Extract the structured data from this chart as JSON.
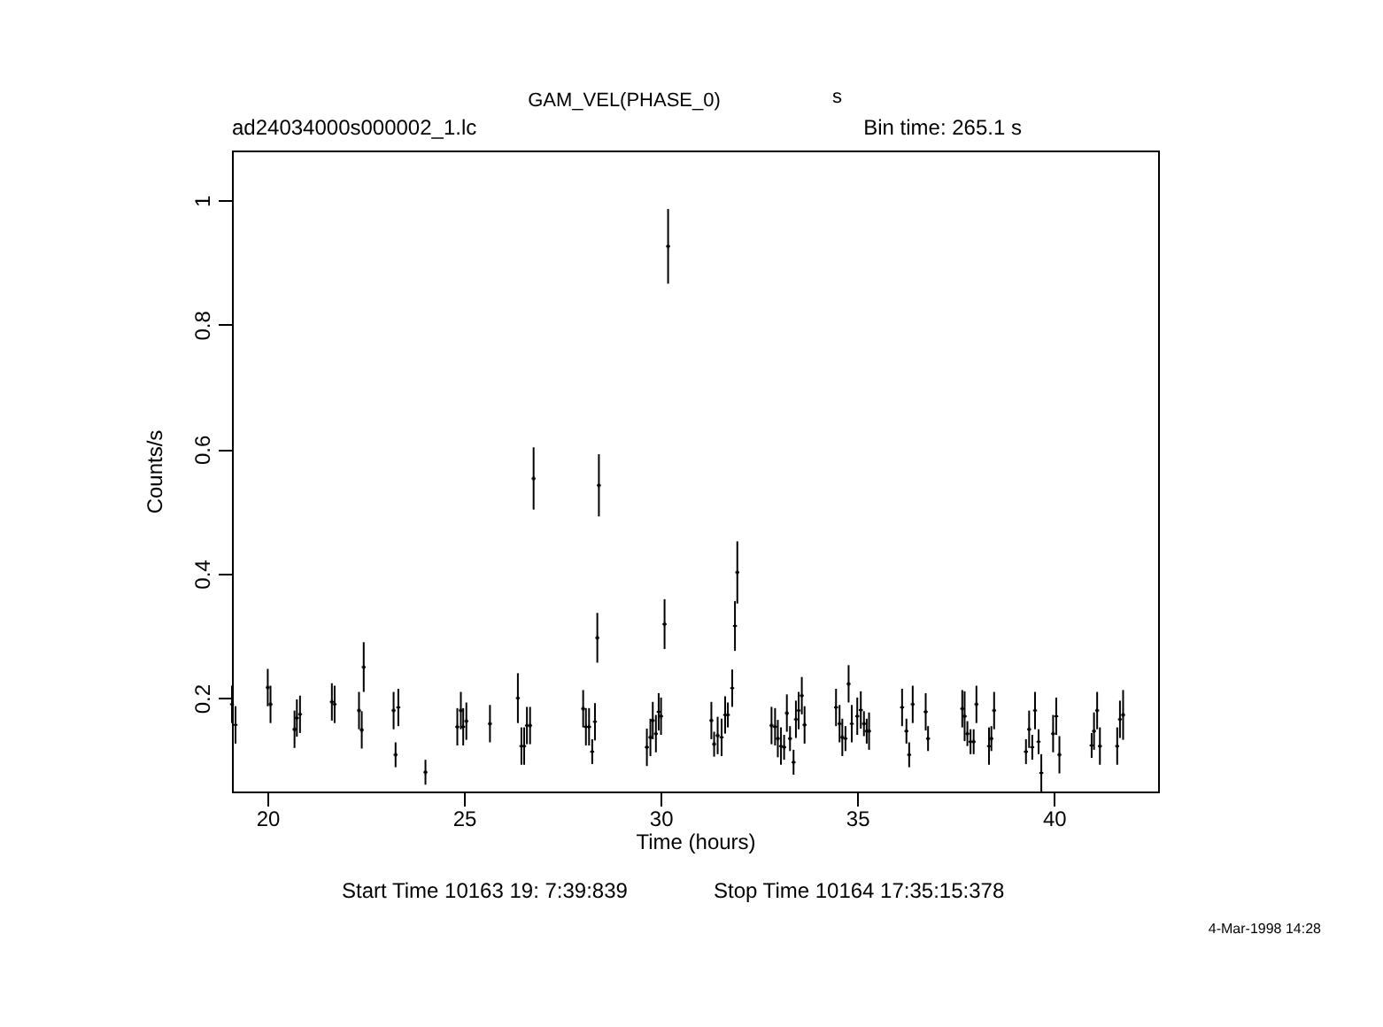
{
  "chart_data": {
    "type": "scatter",
    "title": "GAM_VEL(PHASE_0)",
    "xlabel": "Time (hours)",
    "ylabel": "Counts/s",
    "annotations": [
      "s",
      "ad24034000s000002_1.lc",
      "Bin time:   265.1   s",
      "Start Time 10163 19: 7:39:839",
      "Stop Time 10164 17:35:15:378",
      "4-Mar-1998 14:28"
    ],
    "marker": "cross",
    "xlim": [
      19.1,
      42.65
    ],
    "xticks": [
      20,
      25,
      30,
      35,
      40
    ],
    "ylim": [
      0.05,
      1.08
    ],
    "yticks": [
      0.2,
      0.4,
      0.6,
      0.8,
      1
    ],
    "x": [
      19.1,
      19.19,
      20.01,
      20.08,
      20.69,
      20.75,
      20.83,
      21.64,
      21.71,
      22.33,
      22.4,
      22.45,
      23.21,
      23.26,
      23.33,
      24.02,
      24.83,
      24.92,
      24.98,
      25.06,
      25.66,
      26.37,
      26.46,
      26.53,
      26.6,
      26.68,
      26.77,
      28.03,
      28.1,
      28.18,
      28.26,
      28.33,
      28.39,
      28.43,
      29.65,
      29.74,
      29.8,
      29.88,
      29.95,
      30.01,
      30.1,
      30.19,
      31.29,
      31.36,
      31.45,
      31.55,
      31.64,
      31.71,
      31.82,
      31.89,
      31.95,
      32.82,
      32.91,
      32.98,
      33.06,
      33.14,
      33.21,
      33.29,
      33.38,
      33.44,
      33.51,
      33.59,
      33.66,
      34.46,
      34.55,
      34.62,
      34.7,
      34.78,
      34.86,
      35.0,
      35.09,
      35.17,
      35.24,
      35.3,
      36.14,
      36.25,
      36.32,
      36.41,
      36.74,
      36.8,
      37.67,
      37.73,
      37.8,
      37.88,
      37.96,
      38.03,
      38.35,
      38.41,
      38.48,
      39.29,
      39.37,
      39.45,
      39.52,
      39.61,
      39.68,
      39.98,
      40.06,
      40.14,
      40.96,
      41.02,
      41.1,
      41.17,
      41.61,
      41.68,
      41.76
    ],
    "series": [
      {
        "color": "#000000",
        "values": [
          0.19,
          0.157,
          0.217,
          0.19,
          0.15,
          0.168,
          0.174,
          0.194,
          0.19,
          0.18,
          0.149,
          0.25,
          0.18,
          0.109,
          0.185,
          0.081,
          0.154,
          0.18,
          0.154,
          0.163,
          0.159,
          0.2,
          0.123,
          0.123,
          0.156,
          0.156,
          0.553,
          0.183,
          0.154,
          0.154,
          0.114,
          0.162,
          0.297,
          0.542,
          0.121,
          0.137,
          0.164,
          0.143,
          0.178,
          0.171,
          0.319,
          0.926,
          0.164,
          0.126,
          0.14,
          0.137,
          0.173,
          0.173,
          0.216,
          0.316,
          0.402,
          0.156,
          0.154,
          0.135,
          0.123,
          0.121,
          0.176,
          0.135,
          0.097,
          0.166,
          0.18,
          0.204,
          0.157,
          0.185,
          0.159,
          0.137,
          0.135,
          0.223,
          0.159,
          0.171,
          0.181,
          0.159,
          0.147,
          0.147,
          0.185,
          0.147,
          0.109,
          0.19,
          0.178,
          0.135,
          0.183,
          0.171,
          0.143,
          0.13,
          0.13,
          0.19,
          0.123,
          0.135,
          0.18,
          0.114,
          0.15,
          0.121,
          0.18,
          0.13,
          0.08,
          0.143,
          0.171,
          0.109,
          0.124,
          0.147,
          0.18,
          0.123,
          0.123,
          0.166,
          0.173
        ],
        "errors": [
          0.03,
          0.03,
          0.03,
          0.03,
          0.03,
          0.03,
          0.03,
          0.03,
          0.03,
          0.03,
          0.03,
          0.04,
          0.03,
          0.02,
          0.03,
          0.02,
          0.03,
          0.03,
          0.03,
          0.03,
          0.03,
          0.04,
          0.03,
          0.03,
          0.03,
          0.03,
          0.05,
          0.03,
          0.03,
          0.03,
          0.02,
          0.03,
          0.04,
          0.05,
          0.03,
          0.03,
          0.03,
          0.03,
          0.03,
          0.03,
          0.04,
          0.06,
          0.03,
          0.02,
          0.03,
          0.03,
          0.03,
          0.02,
          0.03,
          0.04,
          0.05,
          0.03,
          0.03,
          0.03,
          0.03,
          0.02,
          0.03,
          0.02,
          0.02,
          0.03,
          0.03,
          0.03,
          0.03,
          0.03,
          0.03,
          0.03,
          0.02,
          0.03,
          0.03,
          0.03,
          0.03,
          0.02,
          0.02,
          0.03,
          0.03,
          0.02,
          0.02,
          0.03,
          0.03,
          0.02,
          0.03,
          0.04,
          0.02,
          0.02,
          0.02,
          0.03,
          0.03,
          0.02,
          0.03,
          0.02,
          0.03,
          0.02,
          0.03,
          0.02,
          0.03,
          0.03,
          0.03,
          0.03,
          0.02,
          0.03,
          0.03,
          0.03,
          0.03,
          0.03,
          0.04
        ]
      }
    ]
  }
}
